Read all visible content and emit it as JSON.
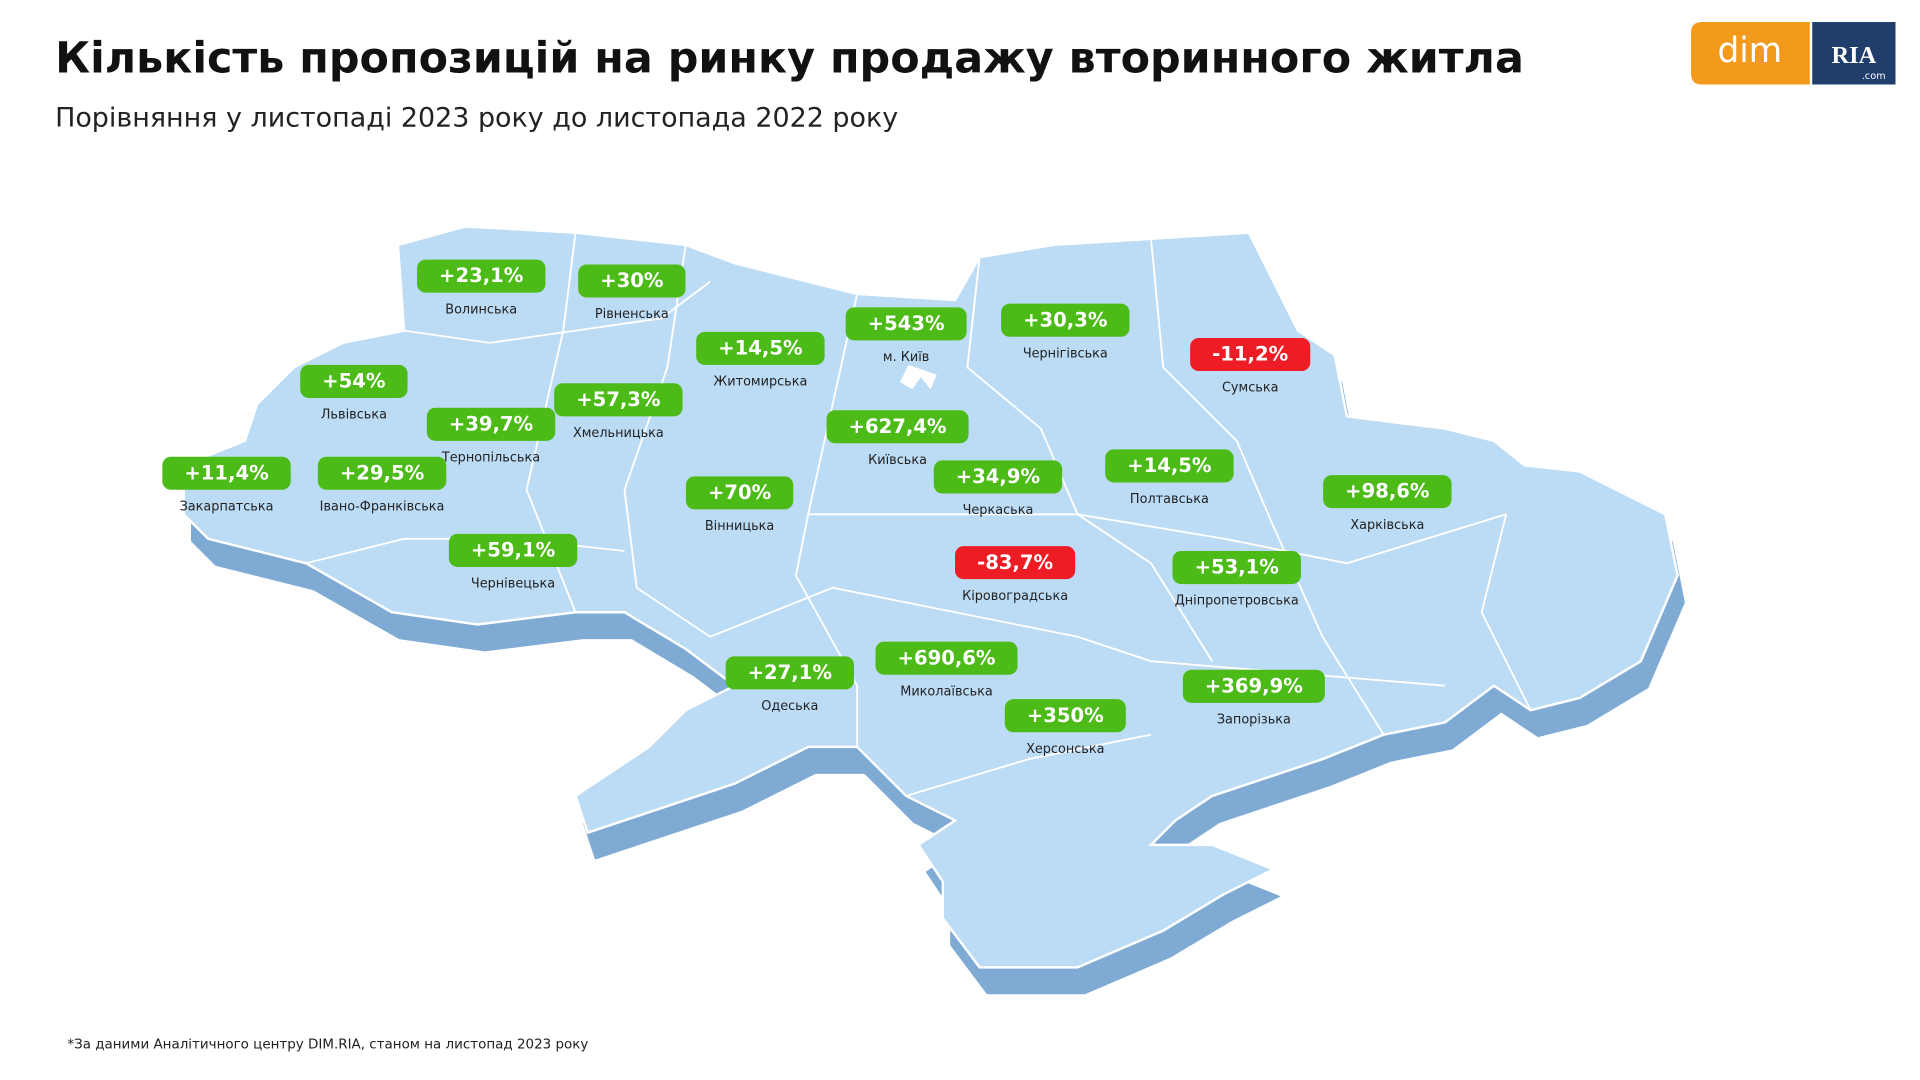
{
  "header": {
    "title": "Кількість пропозицій на ринку продажу вторинного житла",
    "subtitle": "Порівняння у листопаді 2023 року до листопада 2022 року"
  },
  "logo": {
    "dim": "dim",
    "ria": "RIA",
    "com": ".com"
  },
  "regions": [
    {
      "name": "Волинська",
      "label": "+23,1%",
      "color": "#4cbb17"
    },
    {
      "name": "Рівненська",
      "label": "+30%",
      "color": "#4cbb17"
    },
    {
      "name": "Житомирська",
      "label": "+14,5%",
      "color": "#4cbb17"
    },
    {
      "name": "м. Київ",
      "label": "+543%",
      "color": "#4cbb17"
    },
    {
      "name": "Чернігівська",
      "label": "+30,3%",
      "color": "#4cbb17"
    },
    {
      "name": "Сумська",
      "label": "-11,2%",
      "color": "#ee1c25"
    },
    {
      "name": "Львівська",
      "label": "+54%",
      "color": "#4cbb17"
    },
    {
      "name": "Хмельницька",
      "label": "+57,3%",
      "color": "#4cbb17"
    },
    {
      "name": "Тернопільська",
      "label": "+39,7%",
      "color": "#4cbb17"
    },
    {
      "name": "Київська",
      "label": "+627,4%",
      "color": "#4cbb17"
    },
    {
      "name": "Закарпатська",
      "label": "+11,4%",
      "color": "#4cbb17"
    },
    {
      "name": "Івано-Франківська",
      "label": "+29,5%",
      "color": "#4cbb17"
    },
    {
      "name": "Черкаська",
      "label": "+34,9%",
      "color": "#4cbb17"
    },
    {
      "name": "Полтавська",
      "label": "+14,5%",
      "color": "#4cbb17"
    },
    {
      "name": "Харківська",
      "label": "+98,6%",
      "color": "#4cbb17"
    },
    {
      "name": "Вінницька",
      "label": "+70%",
      "color": "#4cbb17"
    },
    {
      "name": "Чернівецька",
      "label": "+59,1%",
      "color": "#4cbb17"
    },
    {
      "name": "Кіровоградська",
      "label": "-83,7%",
      "color": "#ee1c25"
    },
    {
      "name": "Дніпропетровська",
      "label": "+53,1%",
      "color": "#4cbb17"
    },
    {
      "name": "Одеська",
      "label": "+27,1%",
      "color": "#4cbb17"
    },
    {
      "name": "Миколаївська",
      "label": "+690,6%",
      "color": "#4cbb17"
    },
    {
      "name": "Херсонська",
      "label": "+350%",
      "color": "#4cbb17"
    },
    {
      "name": "Запорізька",
      "label": "+369,9%",
      "color": "#4cbb17"
    }
  ],
  "footnote": "*За даними Аналітичного центру DIM.RIA, станом на листопад 2023 року"
}
